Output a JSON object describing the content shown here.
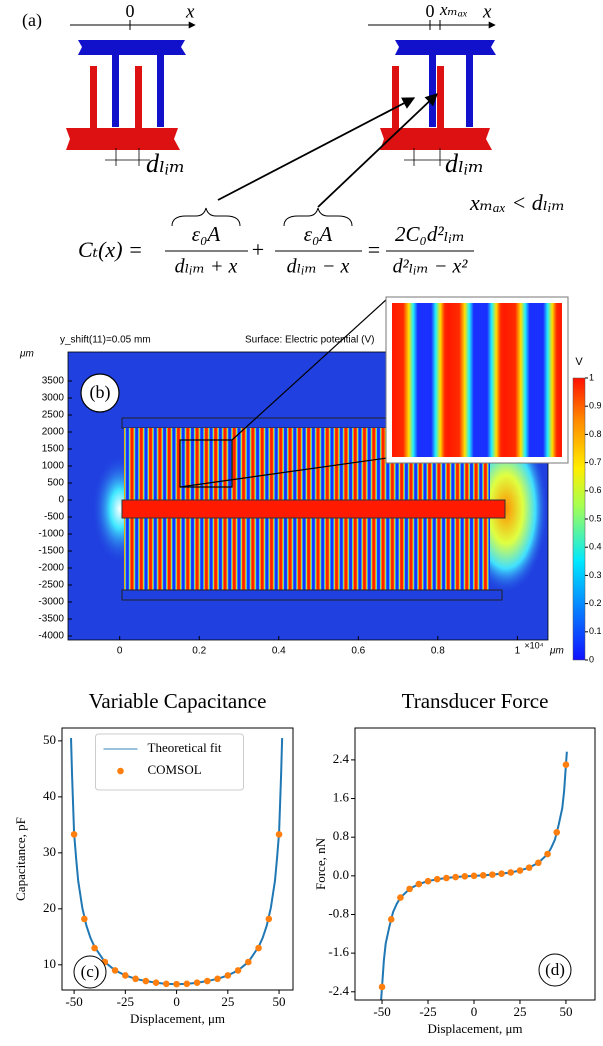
{
  "panel_a": {
    "label": "(a)",
    "left_axis_zero": "0",
    "left_axis_var": "x",
    "left_gap": "dₗᵢₘ",
    "right_axis_zero": "0",
    "right_axis_max": "xₘₐₓ",
    "right_axis_var": "x",
    "right_gap": "dₗᵢₘ",
    "condition": "xₘₐₓ < dₗᵢₘ",
    "formula": {
      "lhs": "Cₜ(x) =",
      "t1_num": "ε₀A",
      "t1_den": "dₗᵢₘ + x",
      "plus": "+",
      "t2_num": "ε₀A",
      "t2_den": "dₗᵢₘ − x",
      "equals": "=",
      "rhs_num": "2C₀d²ₗᵢₘ",
      "rhs_den": "d²ₗᵢₘ − x²"
    }
  },
  "chart_data": [
    {
      "type": "field",
      "panel_label": "(b)",
      "annotations": [
        "y_shift(11)=0.05 mm",
        "Surface: Electric potential (V)"
      ],
      "x_unit": "μm",
      "x_multiplier": "×10⁴",
      "y_unit": "μm",
      "xlim": [
        -0.13,
        1.077
      ],
      "ylim": [
        -4118,
        4353
      ],
      "xticks": [
        0,
        0.2,
        0.4,
        0.6,
        0.8,
        1
      ],
      "yticks": [
        3500,
        3000,
        2500,
        2000,
        1500,
        1000,
        500,
        0,
        -500,
        -1000,
        -1500,
        -2000,
        -2500,
        -3000,
        -3500,
        -4000
      ],
      "colorbar_title": "V",
      "clim": [
        0,
        1
      ],
      "cticks": [
        0,
        0.1,
        0.2,
        0.3,
        0.4,
        0.5,
        0.6,
        0.7,
        0.8,
        0.9,
        1
      ]
    },
    {
      "type": "line",
      "panel_label": "(c)",
      "title": "Variable Capacitance",
      "x_label": "Displacement, μm",
      "y_label": "Capacitance, pF",
      "xlim": [
        -55.9,
        56.8
      ],
      "ylim": [
        5.5,
        52.3
      ],
      "xticks": [
        -50,
        -25,
        0,
        25,
        50
      ],
      "yticks": [
        10,
        20,
        30,
        40,
        50
      ],
      "legend": "upper center",
      "series": [
        {
          "name": "Theoretical fit",
          "color": "#1f77b4",
          "style": "line",
          "x": [
            -51.5,
            -51,
            -50,
            -49,
            -48,
            -46,
            -44,
            -42,
            -40,
            -35,
            -30,
            -25,
            -20,
            -15,
            -10,
            -5,
            0,
            5,
            10,
            15,
            20,
            25,
            30,
            35,
            40,
            42,
            44,
            46,
            48,
            49,
            50,
            51,
            51.5
          ],
          "values": [
            50.5,
            44,
            33.5,
            29,
            25,
            20.2,
            17,
            14.8,
            13.2,
            10.5,
            9,
            8.1,
            7.5,
            7.1,
            6.8,
            6.6,
            6.55,
            6.6,
            6.8,
            7.1,
            7.5,
            8.1,
            9,
            10.5,
            13.2,
            14.8,
            17,
            20.2,
            25,
            29,
            33.5,
            44,
            50.5
          ]
        },
        {
          "name": "COMSOL",
          "color": "#ff7f0e",
          "style": "points",
          "x": [
            -50,
            -45,
            -40,
            -35,
            -30,
            -25,
            -20,
            -15,
            -10,
            -5,
            0,
            5,
            10,
            15,
            20,
            25,
            30,
            35,
            40,
            45,
            50
          ],
          "values": [
            33.3,
            18.2,
            13.0,
            10.5,
            9.0,
            8.1,
            7.5,
            7.1,
            6.8,
            6.6,
            6.55,
            6.6,
            6.8,
            7.1,
            7.5,
            8.1,
            9.0,
            10.5,
            13.0,
            18.2,
            33.3
          ]
        }
      ]
    },
    {
      "type": "line",
      "panel_label": "(d)",
      "title": "Transducer Force",
      "x_label": "Displacement, μm",
      "y_label": "Force, nN",
      "xlim": [
        -64.7,
        65.8
      ],
      "ylim": [
        -2.57,
        3.06
      ],
      "xticks": [
        -50,
        -25,
        0,
        25,
        50
      ],
      "yticks": [
        -2.4,
        -1.6,
        -0.8,
        {
          "value": 0,
          "label": "0.0"
        },
        0.8,
        1.6,
        2.4
      ],
      "series": [
        {
          "color": "#1f77b4",
          "style": "line",
          "x": [
            -50.5,
            -50,
            -49,
            -48,
            -46,
            -44,
            -42,
            -40,
            -35,
            -30,
            -25,
            -20,
            -15,
            -10,
            -5,
            0,
            5,
            10,
            15,
            20,
            25,
            30,
            35,
            40,
            42,
            44,
            46,
            48,
            49,
            50,
            50.5
          ],
          "values": [
            -2.57,
            -2.3,
            -1.75,
            -1.4,
            -1.05,
            -0.75,
            -0.58,
            -0.45,
            -0.27,
            -0.17,
            -0.11,
            -0.07,
            -0.045,
            -0.025,
            -0.01,
            0,
            0.01,
            0.025,
            0.045,
            0.07,
            0.11,
            0.17,
            0.27,
            0.45,
            0.58,
            0.75,
            1.05,
            1.4,
            1.75,
            2.3,
            2.57
          ]
        },
        {
          "color": "#ff7f0e",
          "style": "points",
          "x": [
            -50,
            -45,
            -40,
            -35,
            -30,
            -25,
            -20,
            -15,
            -10,
            -5,
            0,
            5,
            10,
            15,
            20,
            25,
            30,
            35,
            40,
            45,
            50
          ],
          "values": [
            -2.3,
            -0.9,
            -0.45,
            -0.27,
            -0.17,
            -0.11,
            -0.07,
            -0.045,
            -0.025,
            -0.01,
            0,
            0.01,
            0.025,
            0.045,
            0.07,
            0.11,
            0.17,
            0.27,
            0.45,
            0.9,
            2.3
          ]
        }
      ]
    }
  ]
}
